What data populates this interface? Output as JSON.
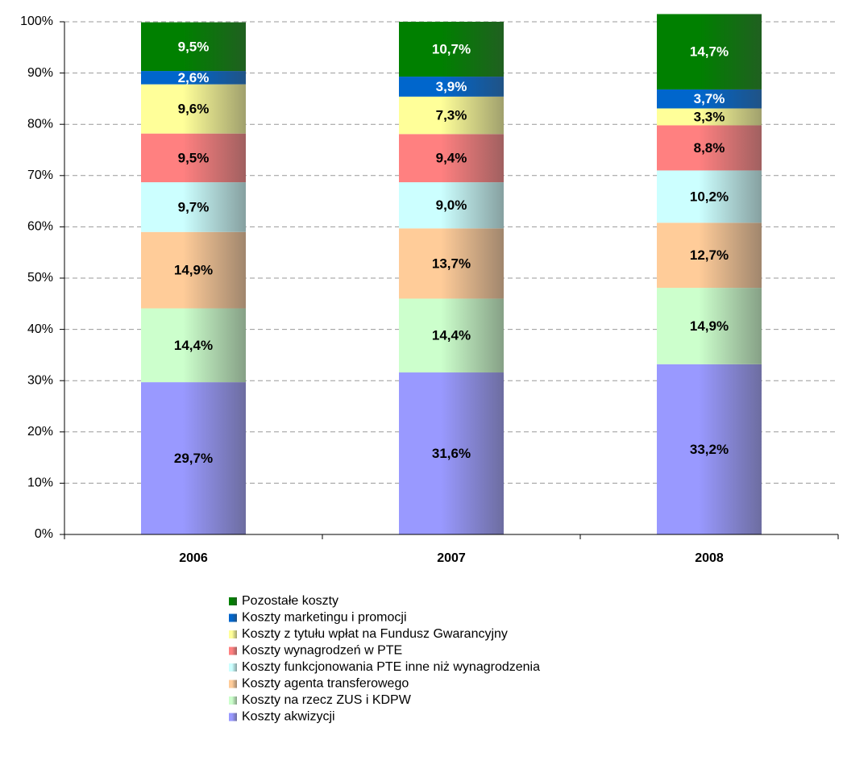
{
  "chart_data": {
    "type": "stacked_bar",
    "categories": [
      "2006",
      "2007",
      "2008"
    ],
    "ylim": [
      0,
      100
    ],
    "yticks": [
      {
        "value": 0,
        "label": "0%"
      },
      {
        "value": 10,
        "label": "10%"
      },
      {
        "value": 20,
        "label": "20%"
      },
      {
        "value": 30,
        "label": "30%"
      },
      {
        "value": 40,
        "label": "40%"
      },
      {
        "value": 50,
        "label": "50%"
      },
      {
        "value": 60,
        "label": "60%"
      },
      {
        "value": 70,
        "label": "70%"
      },
      {
        "value": 80,
        "label": "80%"
      },
      {
        "value": 90,
        "label": "90%"
      },
      {
        "value": 100,
        "label": "100%"
      }
    ],
    "grid": true,
    "series": [
      {
        "name": "Koszty akwizycji",
        "color": "#9999ff",
        "label_color": "#000000",
        "values": [
          29.7,
          31.6,
          33.2
        ],
        "value_labels": [
          "29,7%",
          "31,6%",
          "33,2%"
        ]
      },
      {
        "name": "Koszty na rzecz ZUS i KDPW",
        "color": "#ccffcc",
        "label_color": "#000000",
        "values": [
          14.4,
          14.4,
          14.9
        ],
        "value_labels": [
          "14,4%",
          "14,4%",
          "14,9%"
        ]
      },
      {
        "name": "Koszty agenta transferowego",
        "color": "#ffcc99",
        "label_color": "#000000",
        "values": [
          14.9,
          13.7,
          12.7
        ],
        "value_labels": [
          "14,9%",
          "13,7%",
          "12,7%"
        ]
      },
      {
        "name": "Koszty funkcjonowania PTE inne niż wynagrodzenia",
        "color": "#ccffff",
        "label_color": "#000000",
        "values": [
          9.7,
          9.0,
          10.2
        ],
        "value_labels": [
          "9,7%",
          "9,0%",
          "10,2%"
        ]
      },
      {
        "name": "Koszty wynagrodzeń w PTE",
        "color": "#ff8080",
        "label_color": "#000000",
        "values": [
          9.5,
          9.4,
          8.8
        ],
        "value_labels": [
          "9,5%",
          "9,4%",
          "8,8%"
        ]
      },
      {
        "name": "Koszty z tytułu wpłat na Fundusz Gwarancyjny",
        "color": "#ffff99",
        "label_color": "#000000",
        "values": [
          9.6,
          7.3,
          3.3
        ],
        "value_labels": [
          "9,6%",
          "7,3%",
          "3,3%"
        ]
      },
      {
        "name": "Koszty marketingu i promocji",
        "color": "#0066cc",
        "label_color": "#ffffff",
        "values": [
          2.6,
          3.9,
          3.7
        ],
        "value_labels": [
          "2,6%",
          "3,9%",
          "3,7%"
        ]
      },
      {
        "name": "Pozostałe koszty",
        "color": "#008000",
        "label_color": "#ffffff",
        "values": [
          9.5,
          10.7,
          14.7
        ],
        "value_labels": [
          "9,5%",
          "10,7%",
          "14,7%"
        ]
      }
    ]
  }
}
